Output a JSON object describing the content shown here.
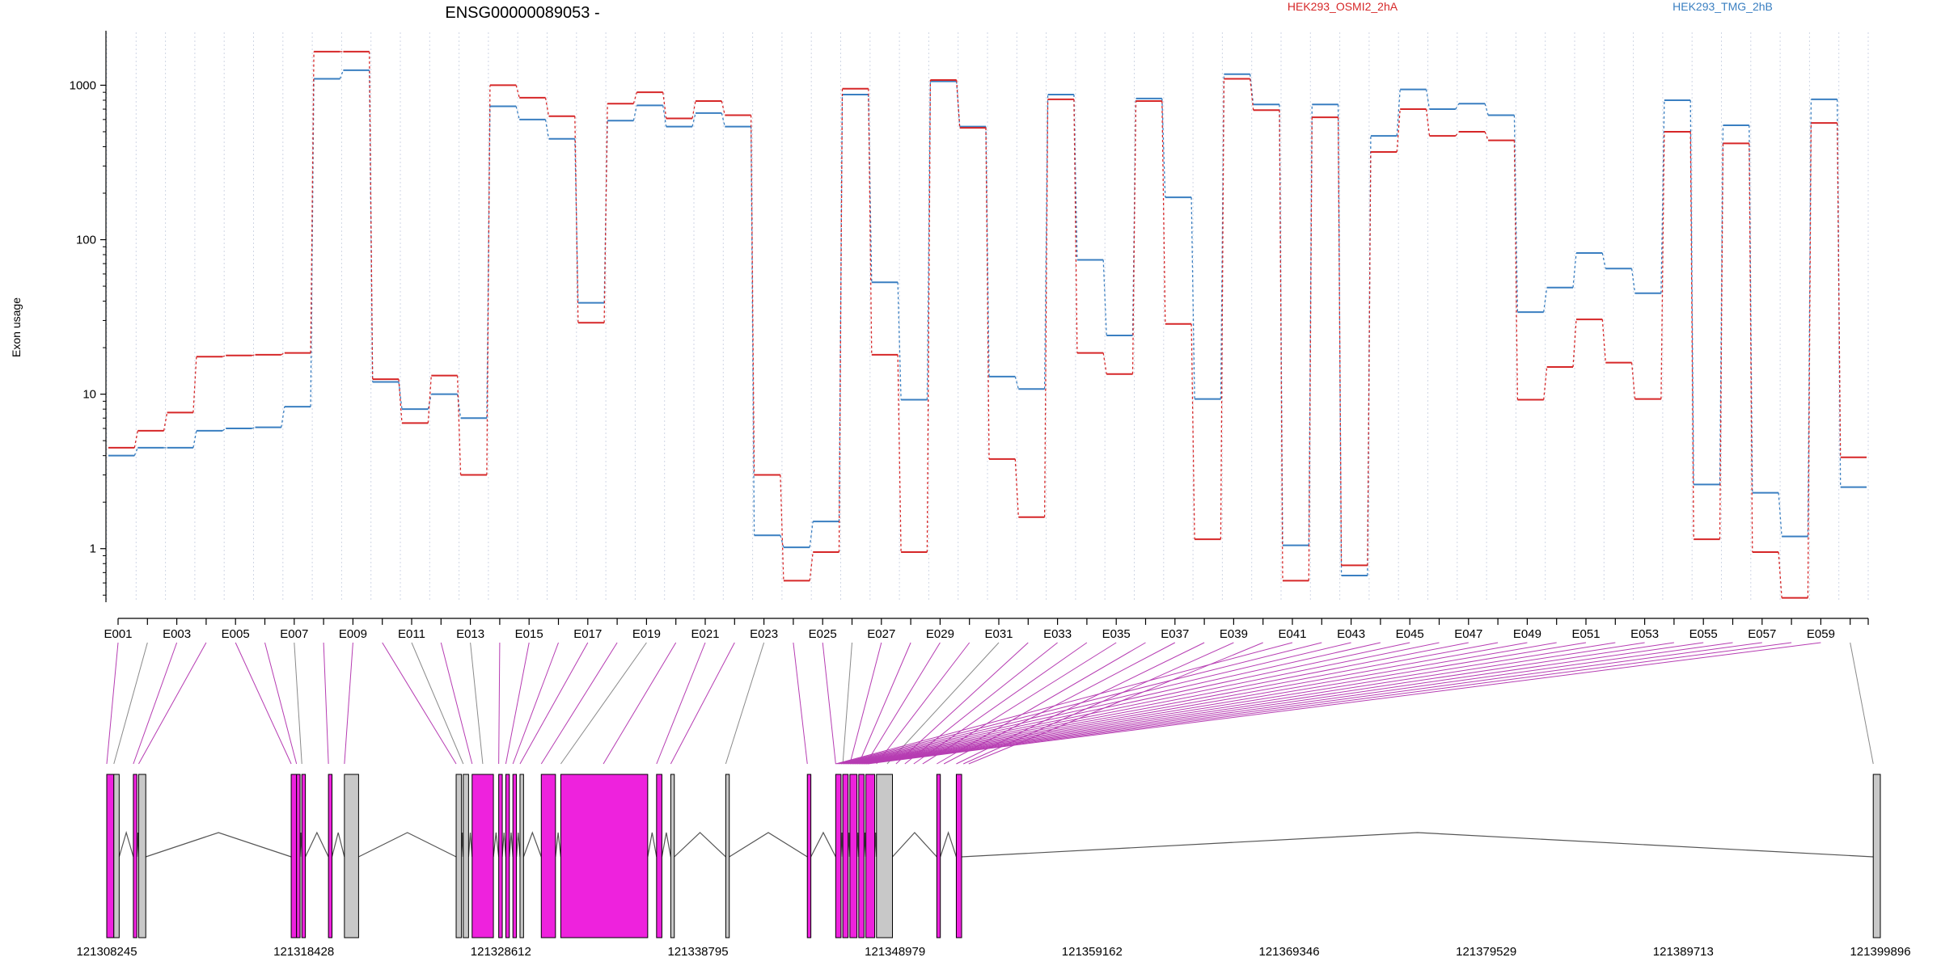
{
  "chart_data": {
    "type": "line",
    "title": "ENSG00000089053 -",
    "ylabel": "Exon usage",
    "yscale": "log",
    "ylim": [
      0.45,
      2200
    ],
    "yticks": [
      1,
      10,
      100,
      1000
    ],
    "ytick_labels": [
      "1",
      "10",
      "100",
      "1000"
    ],
    "grid": "vertical dotted lines at each exon",
    "legend": "top, horizontal",
    "colors": {
      "HEK293_OSMI2_2hA": "#d62728",
      "HEK293_TMG_2hB": "#3a7fc1",
      "exon": "#ee22dd",
      "exon_nonsig": "#c8c8c8"
    },
    "exons": [
      "E001",
      "E002",
      "E003",
      "E004",
      "E005",
      "E006",
      "E007",
      "E008",
      "E009",
      "E010",
      "E011",
      "E012",
      "E013",
      "E014",
      "E015",
      "E016",
      "E017",
      "E018",
      "E019",
      "E020",
      "E021",
      "E022",
      "E023",
      "E024",
      "E025",
      "E026",
      "E027",
      "E028",
      "E029",
      "E030",
      "E031",
      "E032",
      "E033",
      "E034",
      "E035",
      "E036",
      "E037",
      "E038",
      "E039",
      "E040",
      "E041",
      "E042",
      "E043",
      "E044",
      "E045",
      "E046",
      "E047",
      "E048",
      "E049",
      "E050",
      "E051",
      "E052",
      "E053",
      "E054",
      "E055",
      "E056",
      "E057",
      "E058",
      "E059",
      "E060"
    ],
    "exon_axis_labels": [
      "E001",
      "E003",
      "E005",
      "E007",
      "E009",
      "E011",
      "E013",
      "E015",
      "E017",
      "E019",
      "E021",
      "E023",
      "E025",
      "E027",
      "E029",
      "E031",
      "E033",
      "E035",
      "E037",
      "E039",
      "E041",
      "E043",
      "E045",
      "E047",
      "E049",
      "E051",
      "E053",
      "E055",
      "E057",
      "E059"
    ],
    "series": [
      {
        "name": "HEK293_OSMI2_2hA",
        "values": [
          4.5,
          5.8,
          7.6,
          17.5,
          17.8,
          18.0,
          18.5,
          1650,
          1650,
          12.5,
          6.5,
          13.2,
          3.0,
          1000,
          830,
          630,
          29,
          760,
          900,
          610,
          790,
          640,
          3.0,
          0.62,
          0.95,
          950,
          18,
          0.95,
          1080,
          530,
          3.8,
          1.6,
          810,
          18.5,
          13.5,
          790,
          28.5,
          1.15,
          1100,
          690,
          0.62,
          620,
          0.78,
          370,
          700,
          470,
          500,
          440,
          9.2,
          15,
          30.5,
          16,
          9.3,
          500,
          1.15,
          420,
          0.95,
          0.48,
          570,
          3.9
        ]
      },
      {
        "name": "HEK293_TMG_2hB",
        "values": [
          4.0,
          4.5,
          4.5,
          5.8,
          6.0,
          6.1,
          8.3,
          1100,
          1250,
          12.0,
          8.0,
          10.0,
          7.0,
          730,
          600,
          450,
          39,
          590,
          740,
          540,
          660,
          540,
          1.22,
          1.02,
          1.5,
          870,
          53,
          9.2,
          1060,
          540,
          13,
          10.8,
          870,
          74,
          24,
          820,
          188,
          9.3,
          1180,
          750,
          1.05,
          750,
          0.67,
          470,
          940,
          700,
          760,
          640,
          34,
          49,
          82,
          65,
          45,
          800,
          2.6,
          550,
          2.3,
          1.2,
          810,
          2.5
        ]
      }
    ],
    "exon_sig": [
      1,
      0,
      1,
      1,
      1,
      1,
      0,
      1,
      1,
      1,
      0,
      1,
      0,
      1,
      1,
      1,
      1,
      1,
      0,
      1,
      1,
      1,
      0,
      1,
      1,
      0,
      1,
      1,
      1,
      1,
      0,
      1,
      1,
      1,
      1,
      1,
      1,
      1,
      1,
      1,
      1,
      1,
      1,
      1,
      1,
      1,
      1,
      1,
      1,
      1,
      1,
      1,
      1,
      1,
      1,
      1,
      1,
      1,
      1,
      0
    ],
    "genomic_axis": [
      "121308245",
      "121318428",
      "121328612",
      "121338795",
      "121348979",
      "121359162",
      "121369346",
      "121379529",
      "121389713",
      "121399896"
    ]
  },
  "legend": {
    "series_a": "HEK293_OSMI2_2hA",
    "series_b": "HEK293_TMG_2hB"
  }
}
